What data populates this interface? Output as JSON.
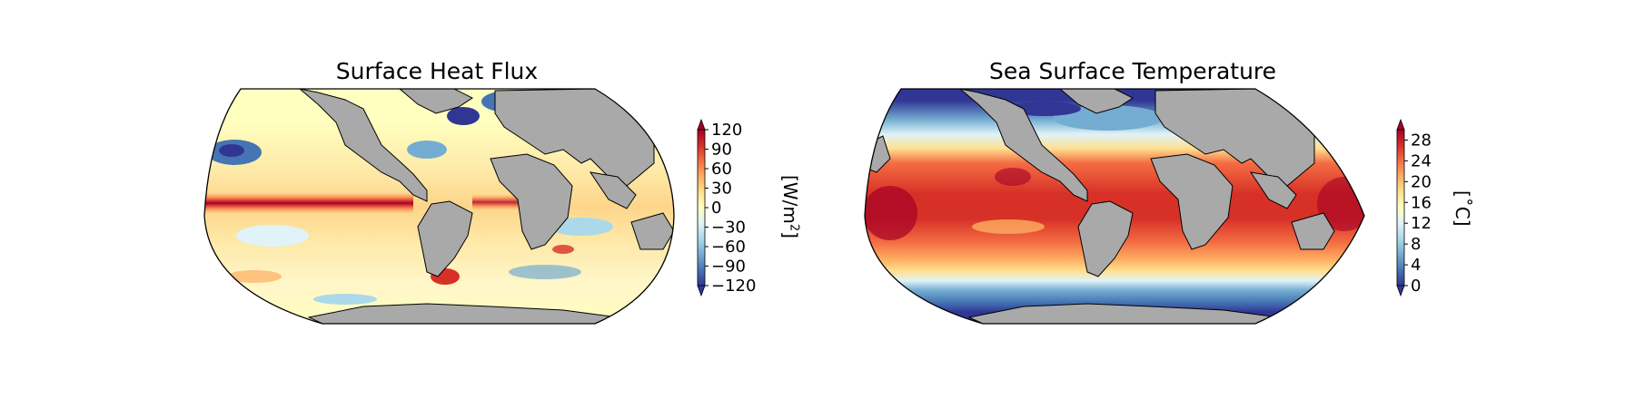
{
  "maps": [
    {
      "title": "Surface Heat Flux",
      "colorbar": {
        "ticks": [
          "120",
          "90",
          "60",
          "30",
          "0",
          "−30",
          "−60",
          "−90",
          "−120"
        ],
        "range": [
          -120,
          120
        ],
        "extend": "both",
        "label_prefix": "[W/m",
        "label_sup": "2",
        "label_suffix": "]",
        "colormap": [
          "#313695",
          "#4575b4",
          "#74add1",
          "#abd9e9",
          "#e0f3f8",
          "#ffffbf",
          "#fee090",
          "#fdae61",
          "#f46d43",
          "#d73027",
          "#a50026"
        ]
      }
    },
    {
      "title": "Sea Surface Temperature",
      "colorbar": {
        "ticks": [
          "28",
          "24",
          "20",
          "16",
          "12",
          "8",
          "4",
          "0"
        ],
        "range": [
          0,
          30
        ],
        "extend": "both",
        "label": "[˚C]",
        "colormap": [
          "#313695",
          "#4575b4",
          "#74add1",
          "#abd9e9",
          "#e0f3f8",
          "#ffffbf",
          "#fee090",
          "#fdae61",
          "#f46d43",
          "#d73027",
          "#a50026"
        ]
      }
    }
  ],
  "colors": {
    "land": "#a9a9a9",
    "coastline": "#000000"
  }
}
